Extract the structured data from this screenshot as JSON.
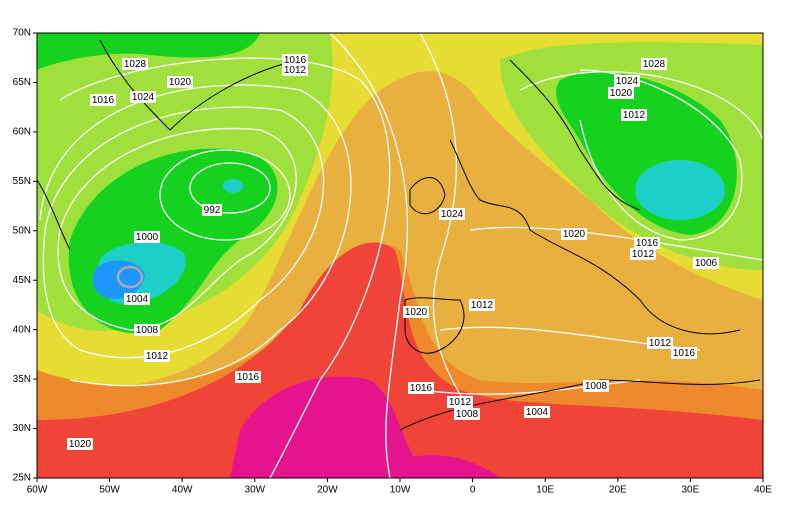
{
  "lat_labels": [
    "70N",
    "65N",
    "60N",
    "55N",
    "50N",
    "45N",
    "40N",
    "35N",
    "30N",
    "25N"
  ],
  "lon_labels": [
    "60W",
    "50W",
    "40W",
    "30W",
    "20W",
    "10W",
    "0",
    "10E",
    "20E",
    "30E",
    "40E"
  ],
  "isobar_labels": [
    "1028",
    "1020",
    "1024",
    "1016",
    "1016",
    "1012",
    "992",
    "1000",
    "1004",
    "1008",
    "1012",
    "1016",
    "1020",
    "1024",
    "1020",
    "1012",
    "1016",
    "1012",
    "1008",
    "1004",
    "1008",
    "1020",
    "1016",
    "1012",
    "1006",
    "1012",
    "1016",
    "1028",
    "1024",
    "1020",
    "1012"
  ]
}
